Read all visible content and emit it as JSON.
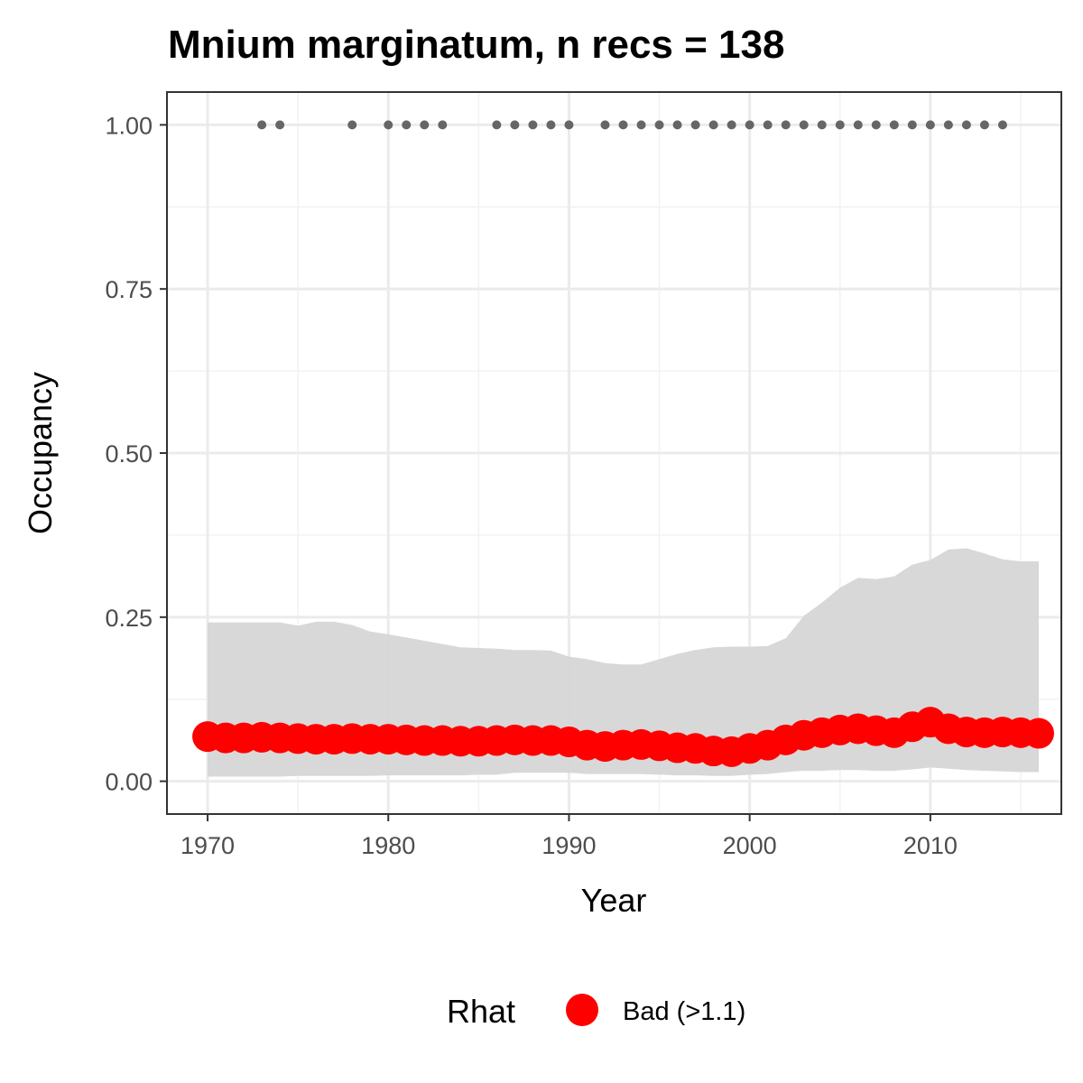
{
  "chart_data": {
    "type": "line",
    "title": "Mnium marginatum, n recs = 138",
    "xlabel": "Year",
    "ylabel": "Occupancy",
    "xlim": [
      1967.75,
      2017.25
    ],
    "ylim": [
      -0.05,
      1.05
    ],
    "x_ticks": [
      1970,
      1980,
      1990,
      2000,
      2010
    ],
    "x_tick_labels": [
      "1970",
      "1980",
      "1990",
      "2000",
      "2010"
    ],
    "y_ticks": [
      0,
      0.25,
      0.5,
      0.75,
      1.0
    ],
    "y_tick_labels": [
      "0.00",
      "0.25",
      "0.50",
      "0.75",
      "1.00"
    ],
    "grid": true,
    "legend": {
      "position": "bottom",
      "title": "Rhat",
      "entries": [
        {
          "label": "Bad (>1.1)",
          "color": "#ff0000"
        }
      ]
    },
    "series": [
      {
        "role": "occupancy estimate",
        "color": "#ff0000",
        "x": [
          1970,
          1971,
          1972,
          1973,
          1974,
          1975,
          1976,
          1977,
          1978,
          1979,
          1980,
          1981,
          1982,
          1983,
          1984,
          1985,
          1986,
          1987,
          1988,
          1989,
          1990,
          1991,
          1992,
          1993,
          1994,
          1995,
          1996,
          1997,
          1998,
          1999,
          2000,
          2001,
          2002,
          2003,
          2004,
          2005,
          2006,
          2007,
          2008,
          2009,
          2010,
          2011,
          2012,
          2013,
          2014,
          2015,
          2016
        ],
        "y": [
          0.068,
          0.066,
          0.066,
          0.067,
          0.066,
          0.065,
          0.064,
          0.064,
          0.065,
          0.064,
          0.064,
          0.063,
          0.062,
          0.062,
          0.061,
          0.061,
          0.062,
          0.063,
          0.062,
          0.062,
          0.06,
          0.055,
          0.053,
          0.055,
          0.056,
          0.054,
          0.051,
          0.05,
          0.046,
          0.045,
          0.05,
          0.055,
          0.063,
          0.07,
          0.074,
          0.078,
          0.08,
          0.077,
          0.074,
          0.083,
          0.09,
          0.08,
          0.075,
          0.074,
          0.075,
          0.074,
          0.073
        ]
      },
      {
        "role": "credible interval",
        "color": "#d6d6d6",
        "x": [
          1970,
          1971,
          1972,
          1973,
          1974,
          1975,
          1976,
          1977,
          1978,
          1979,
          1980,
          1981,
          1982,
          1983,
          1984,
          1985,
          1986,
          1987,
          1988,
          1989,
          1990,
          1991,
          1992,
          1993,
          1994,
          1995,
          1996,
          1997,
          1998,
          1999,
          2000,
          2001,
          2002,
          2003,
          2004,
          2005,
          2006,
          2007,
          2008,
          2009,
          2010,
          2011,
          2012,
          2013,
          2014,
          2015,
          2016
        ],
        "lower": [
          0.007,
          0.007,
          0.007,
          0.007,
          0.007,
          0.008,
          0.008,
          0.008,
          0.008,
          0.008,
          0.009,
          0.009,
          0.009,
          0.009,
          0.009,
          0.01,
          0.01,
          0.013,
          0.013,
          0.013,
          0.013,
          0.011,
          0.011,
          0.011,
          0.011,
          0.01,
          0.009,
          0.009,
          0.008,
          0.008,
          0.01,
          0.011,
          0.014,
          0.016,
          0.016,
          0.017,
          0.017,
          0.016,
          0.016,
          0.018,
          0.021,
          0.019,
          0.017,
          0.016,
          0.015,
          0.014,
          0.014
        ],
        "upper": [
          0.242,
          0.242,
          0.242,
          0.242,
          0.242,
          0.237,
          0.243,
          0.243,
          0.238,
          0.228,
          0.224,
          0.219,
          0.214,
          0.209,
          0.204,
          0.203,
          0.202,
          0.2,
          0.2,
          0.199,
          0.19,
          0.186,
          0.18,
          0.178,
          0.178,
          0.186,
          0.194,
          0.2,
          0.204,
          0.205,
          0.205,
          0.206,
          0.218,
          0.252,
          0.272,
          0.295,
          0.31,
          0.308,
          0.312,
          0.33,
          0.337,
          0.353,
          0.355,
          0.347,
          0.338,
          0.335,
          0.335
        ]
      },
      {
        "role": "records",
        "color": "#666666",
        "x": [
          1973,
          1974,
          1978,
          1980,
          1981,
          1982,
          1983,
          1986,
          1987,
          1988,
          1989,
          1990,
          1992,
          1993,
          1994,
          1995,
          1996,
          1997,
          1998,
          1999,
          2000,
          2001,
          2002,
          2003,
          2004,
          2005,
          2006,
          2007,
          2008,
          2009,
          2010,
          2011,
          2012,
          2013,
          2014
        ],
        "y": [
          1,
          1,
          1,
          1,
          1,
          1,
          1,
          1,
          1,
          1,
          1,
          1,
          1,
          1,
          1,
          1,
          1,
          1,
          1,
          1,
          1,
          1,
          1,
          1,
          1,
          1,
          1,
          1,
          1,
          1,
          1,
          1,
          1,
          1,
          1
        ]
      }
    ]
  }
}
